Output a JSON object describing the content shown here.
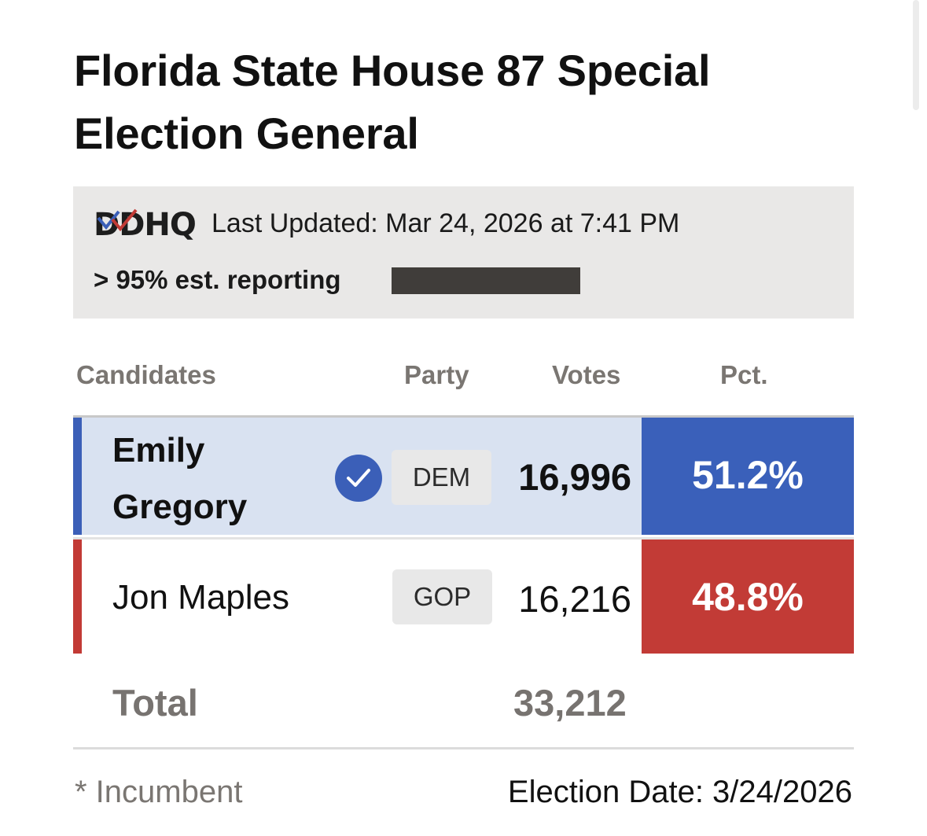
{
  "title_line1": "Florida State House 87 Special",
  "title_line2": "Election General",
  "meta": {
    "logo_text": "DDHQ",
    "last_updated": "Last Updated: Mar 24, 2026 at 7:41 PM",
    "reporting": "> 95% est. reporting"
  },
  "headers": {
    "candidates": "Candidates",
    "party": "Party",
    "votes": "Votes",
    "pct": "Pct."
  },
  "candidates": [
    {
      "first": "Emily",
      "last": "Gregory",
      "party": "DEM",
      "votes": "16,996",
      "pct": "51.2%",
      "winner": true,
      "color": "#3a60ba"
    },
    {
      "name": "Jon Maples",
      "party": "GOP",
      "votes": "16,216",
      "pct": "48.8%",
      "winner": false,
      "color": "#c23b36"
    }
  ],
  "total": {
    "label": "Total",
    "value": "33,212"
  },
  "footer": {
    "incumbent_note": "* Incumbent",
    "election_date": "Election Date: 3/24/2026"
  }
}
